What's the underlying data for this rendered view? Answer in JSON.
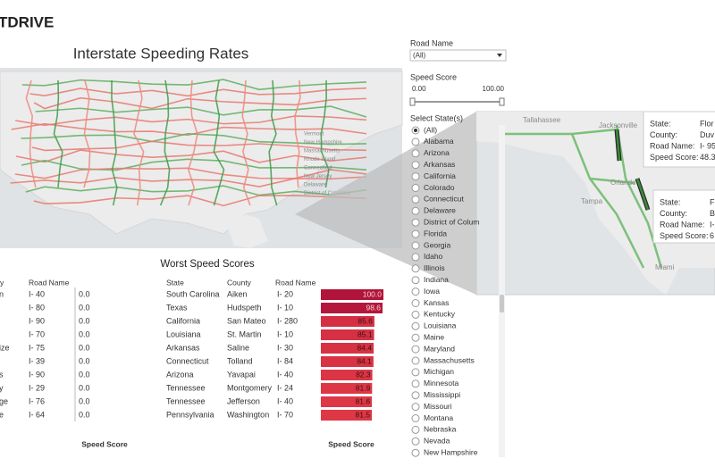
{
  "logo": "TDRIVE",
  "title": "Interstate Speeding Rates",
  "map": {
    "labels": [
      "Vermont",
      "New Hampshire",
      "Massachusetts",
      "Rhode Island",
      "Connecticut",
      "New Jersey",
      "Delaware",
      "District of Columbia"
    ]
  },
  "filters": {
    "road_name": {
      "label": "Road Name",
      "value": "(All)"
    },
    "speed_score": {
      "label": "Speed Score",
      "min": 0,
      "max": 100,
      "min_label": "0.00",
      "max_label": "100.00"
    },
    "states": {
      "label": "Select State(s)",
      "options": [
        "(All)",
        "Alabama",
        "Arizona",
        "Arkansas",
        "California",
        "Colorado",
        "Connecticut",
        "Delaware",
        "District of Colum",
        "Florida",
        "Georgia",
        "Idaho",
        "Illinois",
        "Indiana",
        "Iowa",
        "Kansas",
        "Kentucky",
        "Louisiana",
        "Maine",
        "Maryland",
        "Massachusetts",
        "Michigan",
        "Minnesota",
        "Mississippi",
        "Missouri",
        "Montana",
        "Nebraska",
        "Nevada",
        "New Hampshire"
      ]
    }
  },
  "zoom_map": {
    "labels": [
      "Tallahassee",
      "Jacksonville",
      "Orlando",
      "Tampa",
      "Miami"
    ],
    "tooltips": [
      {
        "rows": [
          [
            "State:",
            "Flor"
          ],
          [
            "County:",
            "Duv"
          ],
          [
            "Road Name:",
            "I- 95"
          ],
          [
            "Speed Score:",
            "48.3"
          ]
        ]
      },
      {
        "rows": [
          [
            "State:",
            "F"
          ],
          [
            "County:",
            "B"
          ],
          [
            "Road Name:",
            "I-"
          ],
          [
            "Speed Score:",
            "6"
          ]
        ]
      }
    ]
  },
  "best_table": {
    "columns": [
      "y",
      "Road Name"
    ],
    "rows": [
      [
        "n",
        "I- 40",
        "0.0"
      ],
      [
        null,
        "I- 80",
        "0.0"
      ],
      [
        null,
        "I- 90",
        "0.0"
      ],
      [
        null,
        "I- 70",
        "0.0"
      ],
      [
        "ize",
        "I- 75",
        "0.0"
      ],
      [
        null,
        "I- 39",
        "0.0"
      ],
      [
        "s",
        "I- 90",
        "0.0"
      ],
      [
        "y",
        "I- 29",
        "0.0"
      ],
      [
        "ge",
        "I- 76",
        "0.0"
      ],
      [
        "e",
        "I- 64",
        "0.0"
      ]
    ],
    "axis_label": "Speed Score"
  },
  "worst_table": {
    "title": "Worst Speed Scores",
    "columns": [
      "State",
      "County",
      "Road Name"
    ],
    "rows": [
      [
        "South Carolina",
        "Aiken",
        "I- 20"
      ],
      [
        "Texas",
        "Hudspeth",
        "I- 10"
      ],
      [
        "California",
        "San Mateo",
        "I- 280"
      ],
      [
        "Louisiana",
        "St. Martin",
        "I- 10"
      ],
      [
        "Arkansas",
        "Saline",
        "I- 30"
      ],
      [
        "Connecticut",
        "Tolland",
        "I- 84"
      ],
      [
        "Arizona",
        "Yavapai",
        "I- 40"
      ],
      [
        "Tennessee",
        "Montgomery",
        "I- 24"
      ],
      [
        "Tennessee",
        "Jefferson",
        "I- 40"
      ],
      [
        "Pennsylvania",
        "Washington",
        "I- 70"
      ]
    ],
    "scores": [
      100,
      98.6,
      85.6,
      85.1,
      84.4,
      84.1,
      82.3,
      81.9,
      81.6,
      81.5
    ],
    "score_labels": [
      "100.0",
      "98.6",
      "85.6",
      "85.1",
      "84.4",
      "84.1",
      "82.3",
      "81.9",
      "81.6",
      "81.5"
    ],
    "axis_label": "Speed Score"
  }
}
